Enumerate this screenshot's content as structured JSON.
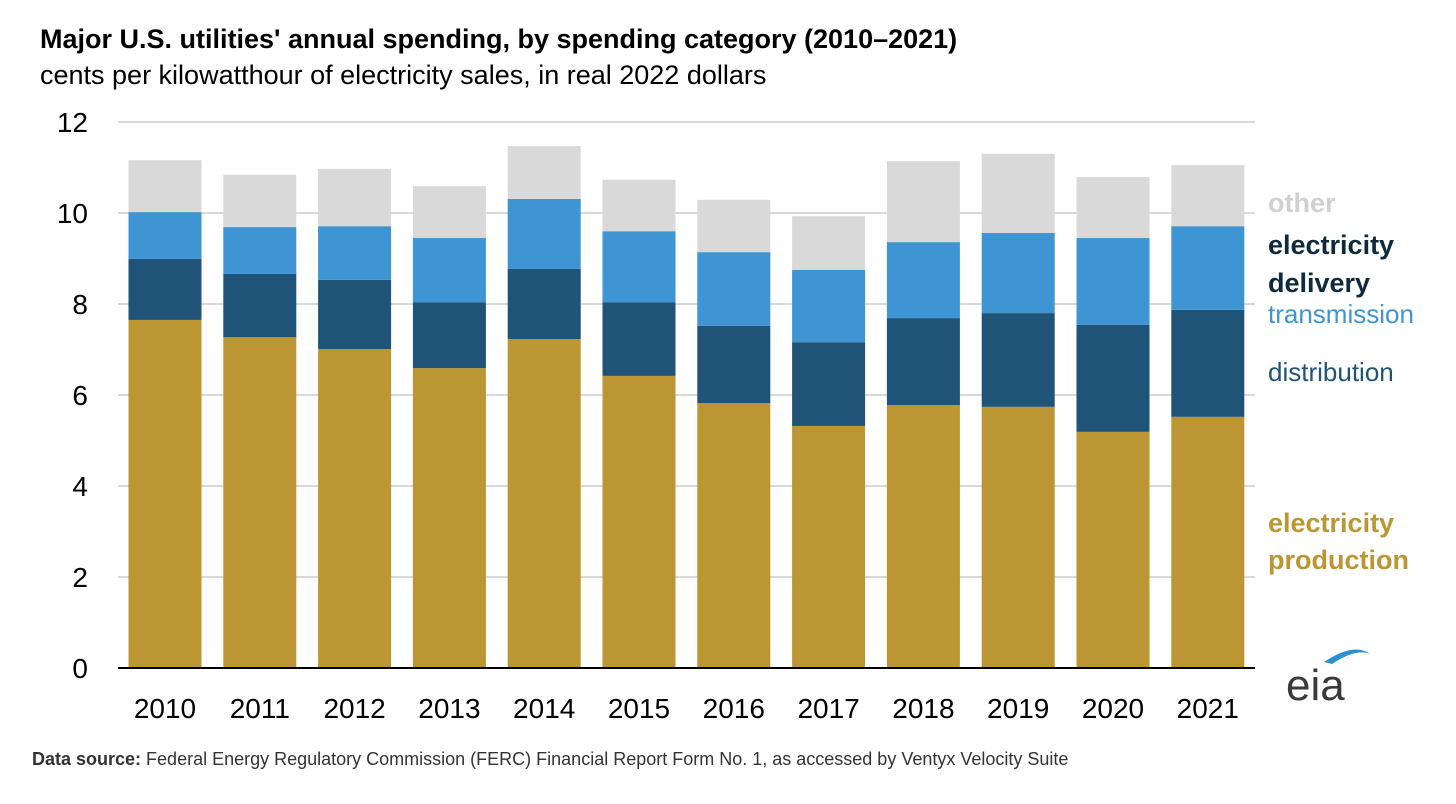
{
  "chart_data": {
    "type": "bar",
    "stacked": true,
    "title": "Major U.S. utilities' annual spending, by spending category (2010–2021)",
    "subtitle": "cents per kilowatthour of electricity sales, in real 2022 dollars",
    "xlabel": "",
    "ylabel": "",
    "ylim": [
      0,
      12
    ],
    "yticks": [
      "0",
      "2",
      "4",
      "6",
      "8",
      "10",
      "12"
    ],
    "grid": true,
    "legend_placement": "right",
    "categories": [
      "2010",
      "2011",
      "2012",
      "2013",
      "2014",
      "2015",
      "2016",
      "2017",
      "2018",
      "2019",
      "2020",
      "2021"
    ],
    "series": [
      {
        "name": "electricity production",
        "color": "#BC9633",
        "values": [
          7.65,
          7.27,
          7.01,
          6.59,
          7.23,
          6.42,
          5.82,
          5.32,
          5.78,
          5.74,
          5.19,
          5.52
        ]
      },
      {
        "name": "distribution",
        "color": "#1F5377",
        "values": [
          1.34,
          1.39,
          1.52,
          1.45,
          1.54,
          1.62,
          1.7,
          1.84,
          1.91,
          2.06,
          2.35,
          2.35
        ]
      },
      {
        "name": "transmission",
        "color": "#3F95D3",
        "values": [
          1.03,
          1.03,
          1.18,
          1.41,
          1.54,
          1.56,
          1.62,
          1.59,
          1.67,
          1.76,
          1.91,
          1.84
        ]
      },
      {
        "name": "other",
        "color": "#D9D9D9",
        "values": [
          1.14,
          1.15,
          1.26,
          1.14,
          1.16,
          1.13,
          1.15,
          1.18,
          1.78,
          1.74,
          1.34,
          1.34
        ]
      }
    ],
    "legend": {
      "other": "other",
      "delivery_line1": "electricity",
      "delivery_line2": "delivery",
      "transmission": "transmission",
      "distribution": "distribution",
      "production_line1": "electricity",
      "production_line2": "production"
    },
    "source_label": "Data source:",
    "source_text": " Federal Energy Regulatory Commission (FERC) Financial Report Form No. 1, as accessed by Ventyx Velocity Suite",
    "logo_text": "eia"
  }
}
